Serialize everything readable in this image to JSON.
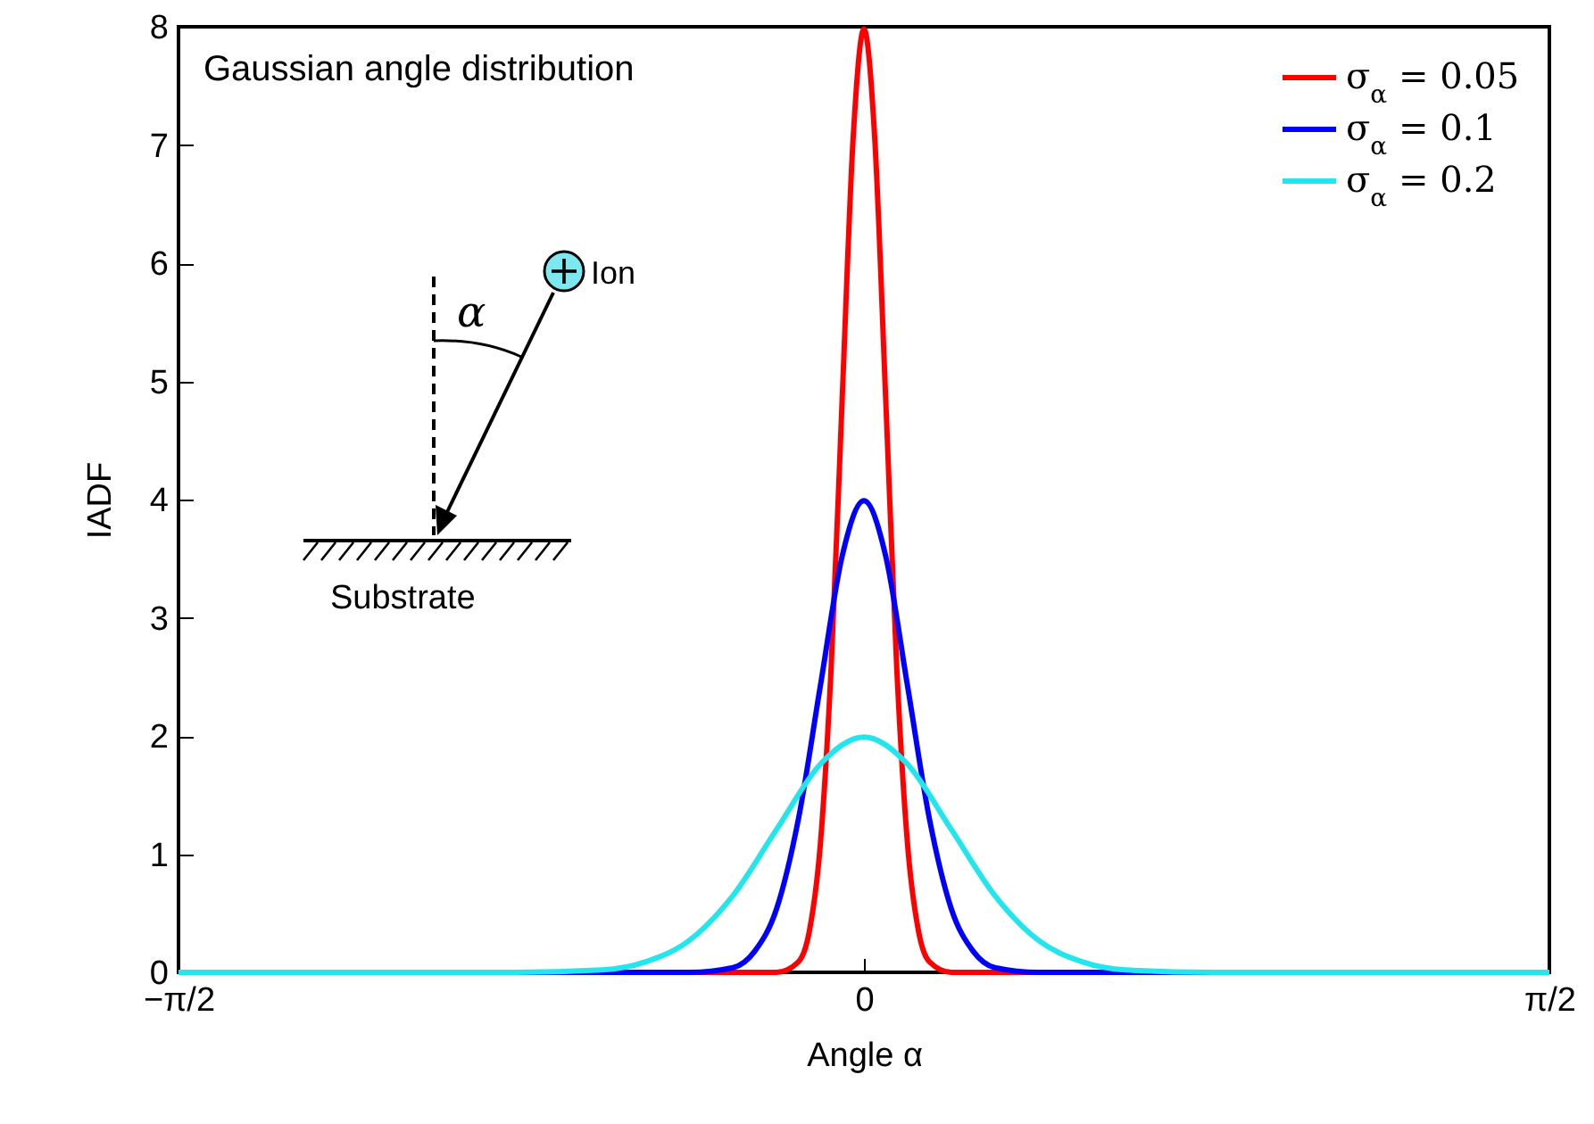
{
  "chart_data": {
    "type": "line",
    "title": "Gaussian angle distribution",
    "xlabel": "Angle α",
    "ylabel": "IADF",
    "annotations": [
      "Ion",
      "Substrate",
      "α"
    ],
    "xlim": [
      -1.5708,
      1.5708
    ],
    "xticks": [
      {
        "value": -1.5708,
        "label": "−π/2"
      },
      0,
      {
        "value": 1.5708,
        "label": "π/2"
      }
    ],
    "ylim": [
      0,
      8
    ],
    "yticks": [
      0,
      1,
      2,
      3,
      4,
      5,
      6,
      7,
      8
    ],
    "legend": "top right",
    "series": [
      {
        "name": "σ$_{α}$ = 0.05",
        "color": "#ff0000",
        "x": [
          -1.5708,
          -0.2,
          -0.15,
          -0.125,
          -0.1,
          -0.075,
          -0.05,
          -0.025,
          0,
          0.025,
          0.05,
          0.075,
          0.1,
          0.125,
          0.15,
          0.2,
          1.5708
        ],
        "values": [
          0,
          0,
          0.09,
          0.35,
          1.08,
          2.59,
          4.84,
          7.04,
          7.98,
          7.04,
          4.84,
          2.59,
          1.08,
          0.35,
          0.09,
          0,
          0
        ]
      },
      {
        "name": "σ$_{α}$ = 0.1",
        "color": "#0000ff",
        "x": [
          -1.5708,
          -0.4,
          -0.3,
          -0.25,
          -0.2,
          -0.15,
          -0.1,
          -0.05,
          0,
          0.05,
          0.1,
          0.15,
          0.2,
          0.25,
          0.3,
          0.4,
          1.5708
        ],
        "values": [
          0,
          0,
          0.04,
          0.18,
          0.54,
          1.3,
          2.42,
          3.52,
          3.99,
          3.52,
          2.42,
          1.3,
          0.54,
          0.18,
          0.04,
          0,
          0
        ]
      },
      {
        "name": "σ$_{α}$ = 0.2",
        "color": "#22e6ee",
        "x": [
          -1.5708,
          -0.8,
          -0.6,
          -0.5,
          -0.4,
          -0.3,
          -0.2,
          -0.1,
          0,
          0.1,
          0.2,
          0.3,
          0.4,
          0.5,
          0.6,
          0.8,
          1.5708
        ],
        "values": [
          0,
          0,
          0.02,
          0.09,
          0.27,
          0.65,
          1.21,
          1.76,
          1.99,
          1.76,
          1.21,
          0.65,
          0.27,
          0.09,
          0.02,
          0,
          0
        ]
      }
    ]
  }
}
